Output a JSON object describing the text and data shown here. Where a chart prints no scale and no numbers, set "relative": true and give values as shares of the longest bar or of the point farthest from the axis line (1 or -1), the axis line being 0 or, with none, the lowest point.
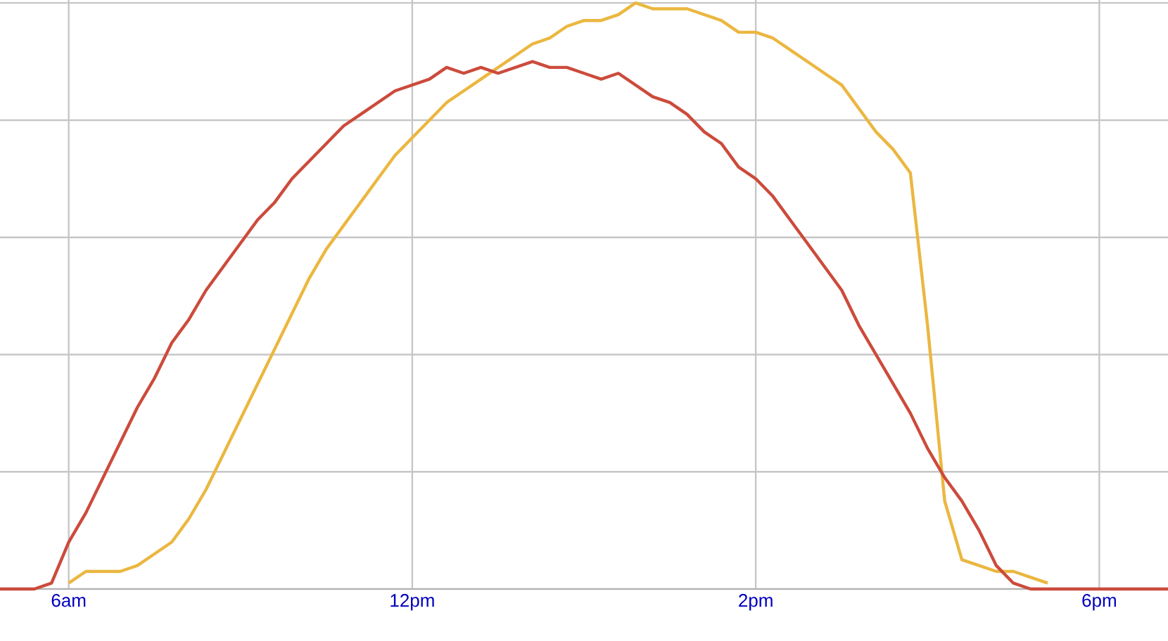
{
  "chart_data": {
    "type": "line",
    "relative": true,
    "grid": true,
    "marker": "none",
    "line_style": "solid",
    "categories": [
      null,
      null,
      null,
      null,
      "6am",
      null,
      null,
      null,
      null,
      null,
      null,
      null,
      null,
      null,
      null,
      null,
      null,
      null,
      null,
      null,
      null,
      null,
      null,
      null,
      "12pm",
      null,
      null,
      null,
      null,
      null,
      null,
      null,
      null,
      null,
      null,
      null,
      null,
      null,
      null,
      null,
      null,
      null,
      null,
      null,
      "2pm",
      null,
      null,
      null,
      null,
      null,
      null,
      null,
      null,
      null,
      null,
      null,
      null,
      null,
      null,
      null,
      null,
      null,
      null,
      null,
      "6pm",
      null,
      null,
      null,
      null
    ],
    "series": [
      {
        "color": "#cc4b3c",
        "values": [
          0,
          0,
          0,
          0.01,
          0.08,
          0.13,
          0.19,
          0.25,
          0.31,
          0.36,
          0.42,
          0.46,
          0.51,
          0.55,
          0.59,
          0.63,
          0.66,
          0.7,
          0.73,
          0.76,
          0.79,
          0.81,
          0.83,
          0.85,
          0.86,
          0.87,
          0.89,
          0.88,
          0.89,
          0.88,
          0.89,
          0.9,
          0.89,
          0.89,
          0.88,
          0.87,
          0.88,
          0.86,
          0.84,
          0.83,
          0.81,
          0.78,
          0.76,
          0.72,
          0.7,
          0.67,
          0.63,
          0.59,
          0.55,
          0.51,
          0.45,
          0.4,
          0.35,
          0.3,
          0.24,
          0.19,
          0.15,
          0.1,
          0.04,
          0.01,
          0,
          0,
          0,
          0,
          0,
          0,
          0,
          0,
          0
        ]
      },
      {
        "color": "#ebb740",
        "values": [
          null,
          null,
          null,
          null,
          0.01,
          0.03,
          0.03,
          0.03,
          0.04,
          0.06,
          0.08,
          0.12,
          0.17,
          0.23,
          0.29,
          0.35,
          0.41,
          0.47,
          0.53,
          0.58,
          0.62,
          0.66,
          0.7,
          0.74,
          0.77,
          0.8,
          0.83,
          0.85,
          0.87,
          0.89,
          0.91,
          0.93,
          0.94,
          0.96,
          0.97,
          0.97,
          0.98,
          1.0,
          0.99,
          0.99,
          0.99,
          0.98,
          0.97,
          0.95,
          0.95,
          0.94,
          0.92,
          0.9,
          0.88,
          0.86,
          0.82,
          0.78,
          0.75,
          0.71,
          0.45,
          0.15,
          0.05,
          0.04,
          0.03,
          0.03,
          0.02,
          0.01,
          null,
          null,
          null,
          null,
          null,
          null,
          null
        ]
      }
    ]
  }
}
